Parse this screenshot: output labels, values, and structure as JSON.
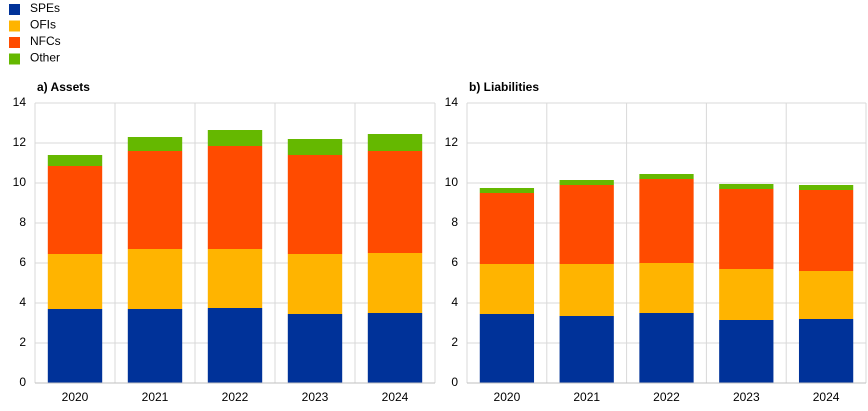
{
  "chart_data": [
    {
      "type": "stacked-bar",
      "title": "a) Assets",
      "categories": [
        "2020",
        "2021",
        "2022",
        "2023",
        "2024"
      ],
      "series": [
        {
          "name": "SPEs",
          "color": "#003299",
          "values": [
            3.7,
            3.7,
            3.75,
            3.45,
            3.5
          ]
        },
        {
          "name": "OFIs",
          "color": "#ffb400",
          "values": [
            2.75,
            3.0,
            2.95,
            3.0,
            3.0
          ]
        },
        {
          "name": "NFCs",
          "color": "#ff4b00",
          "values": [
            4.4,
            4.9,
            5.15,
            4.95,
            5.1
          ]
        },
        {
          "name": "Other",
          "color": "#65b800",
          "values": [
            0.55,
            0.7,
            0.8,
            0.8,
            0.85
          ]
        }
      ],
      "ylim": [
        0,
        14
      ],
      "yticks": [
        0,
        2,
        4,
        6,
        8,
        10,
        12,
        14
      ],
      "grid": true
    },
    {
      "type": "stacked-bar",
      "title": "b) Liabilities",
      "categories": [
        "2020",
        "2021",
        "2022",
        "2023",
        "2024"
      ],
      "series": [
        {
          "name": "SPEs",
          "color": "#003299",
          "values": [
            3.45,
            3.35,
            3.5,
            3.15,
            3.2
          ]
        },
        {
          "name": "OFIs",
          "color": "#ffb400",
          "values": [
            2.5,
            2.6,
            2.5,
            2.55,
            2.4
          ]
        },
        {
          "name": "NFCs",
          "color": "#ff4b00",
          "values": [
            3.55,
            3.95,
            4.2,
            4.0,
            4.05
          ]
        },
        {
          "name": "Other",
          "color": "#65b800",
          "values": [
            0.25,
            0.25,
            0.25,
            0.25,
            0.25
          ]
        }
      ],
      "ylim": [
        0,
        14
      ],
      "yticks": [
        0,
        2,
        4,
        6,
        8,
        10,
        12,
        14
      ],
      "grid": true
    }
  ]
}
